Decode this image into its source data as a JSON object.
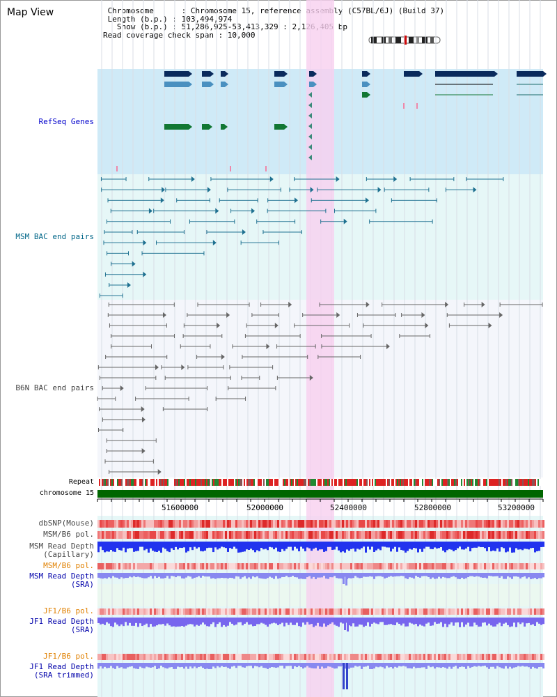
{
  "title": "Map View",
  "info": {
    "line1": " Chromosome      : Chromosome 15, reference assembly (C57BL/6J) (Build 37)",
    "line2": " Length (b.p.) : 103,494,974",
    "line3": "   Show (b.p.) : 51,286,925-53,413,329 : 2,126,405 bp",
    "line4": "Read coverage check span : 10,000"
  },
  "tracks": {
    "refseq": "RefSeq Genes",
    "msm_bac": "MSM BAC end pairs",
    "b6n_bac": "B6N BAC end pairs",
    "repeat": "Repeat",
    "chromosome": "chromosome 15",
    "dbsnp": "dbSNP(Mouse)",
    "msm_b6_pol": "MSM/B6 pol.",
    "msm_depth_cap": "MSM Read Depth\n(Capillary)",
    "msm_b6_pol2": "MSM/B6 pol.",
    "msm_depth_sra": "MSM Read Depth\n(SRA)",
    "jf1_b6_pol": "JF1/B6 pol.",
    "jf1_depth_sra": "JF1 Read Depth\n(SRA)",
    "jf1_b6_pol2": "JF1/B6 pol.",
    "jf1_depth_trim": "JF1 Read Depth\n(SRA trimmed)"
  },
  "axis_ticks": [
    "51600000",
    "52000000",
    "52400000",
    "52800000",
    "53200000"
  ],
  "colors": {
    "refseq_bg": "#cfeaf7",
    "bac_bg": "#e6f7f7",
    "highlight": "#f7d5f0",
    "chrom_bar": "#006600",
    "gene_dark": "#002255",
    "gene_mid": "#4488bb",
    "gene_green": "#117733"
  }
}
